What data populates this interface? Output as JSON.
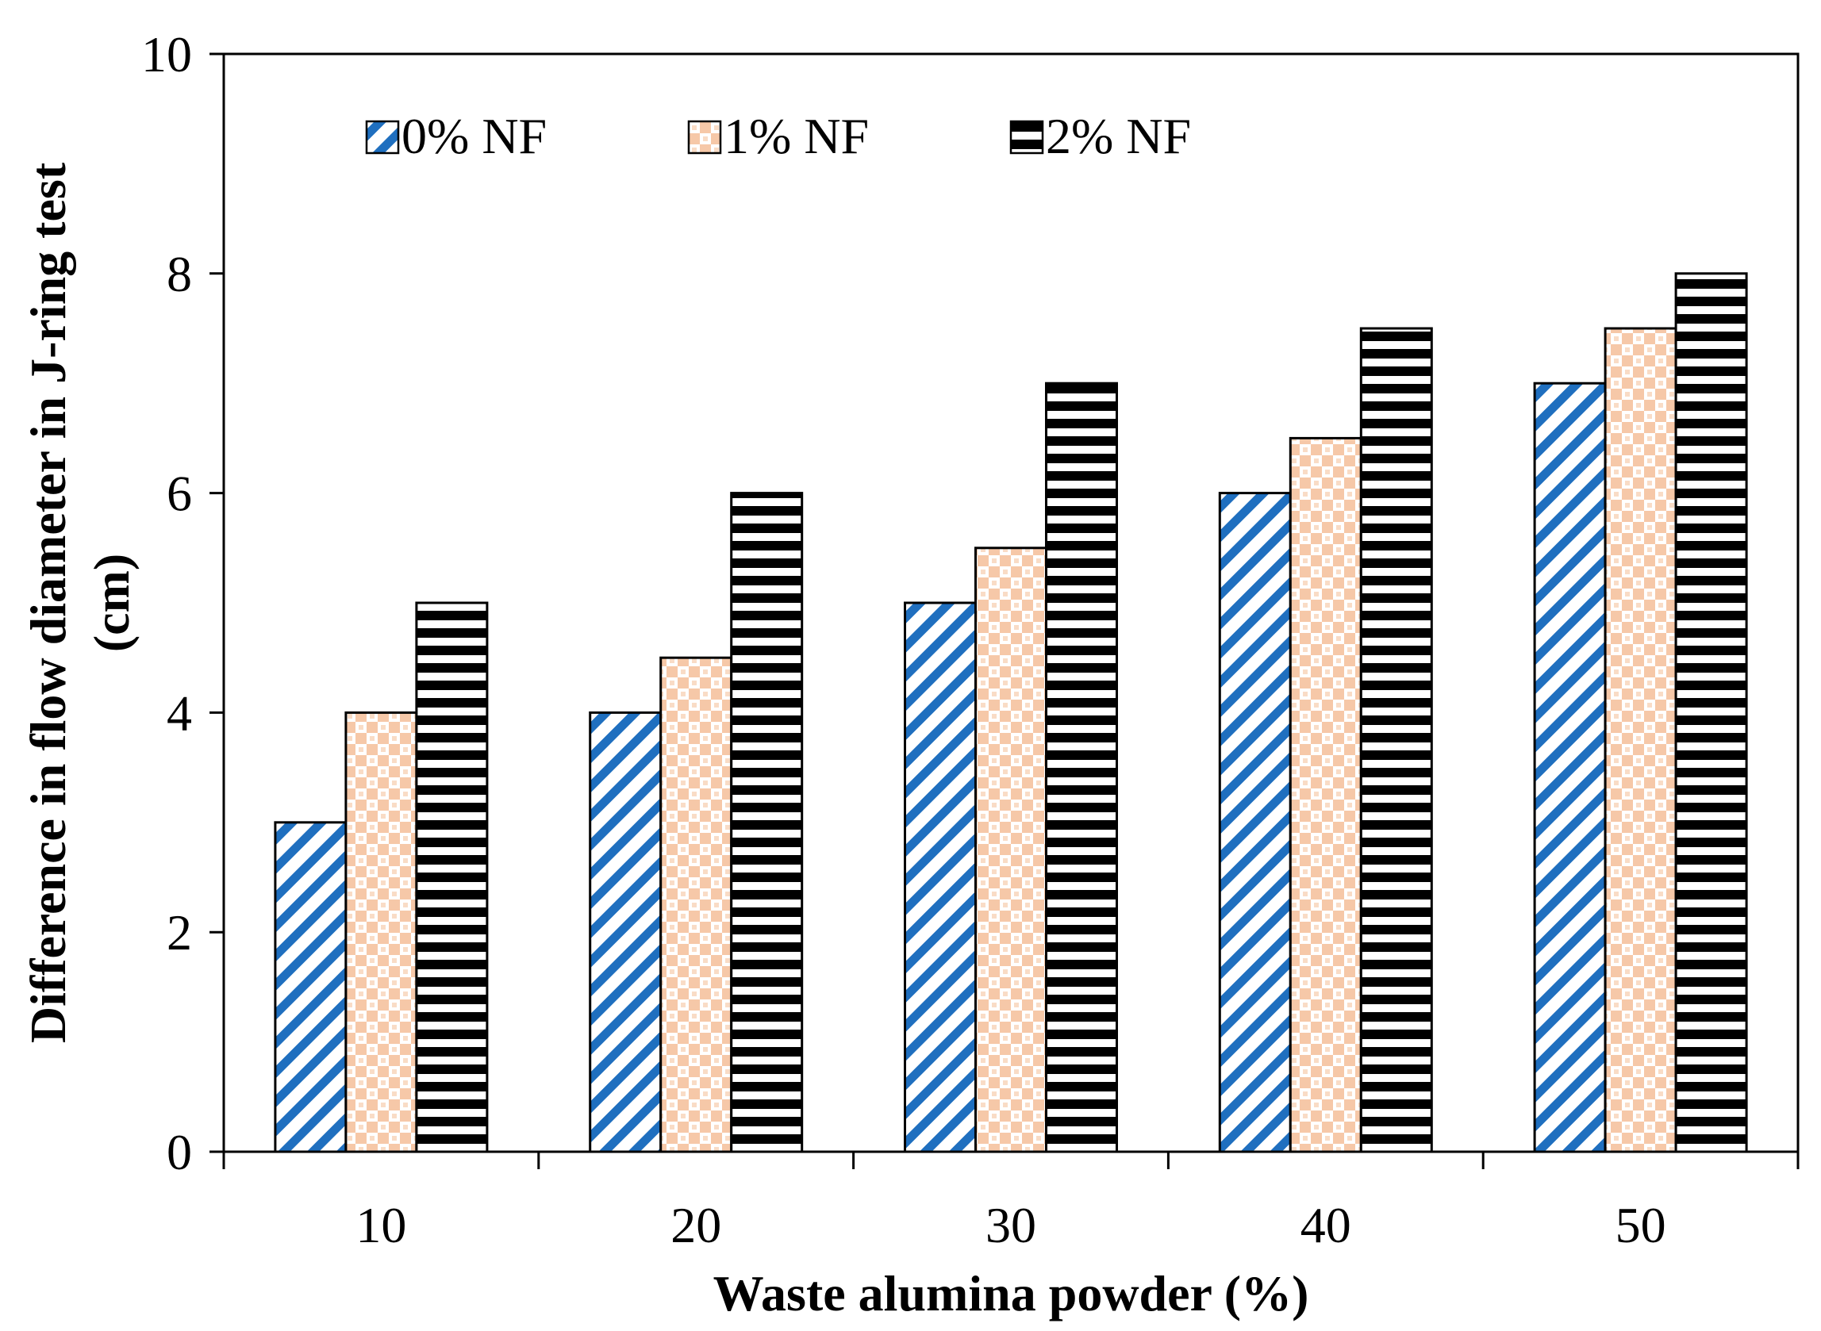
{
  "chart_data": {
    "type": "bar",
    "title": "",
    "xlabel": "Waste alumina powder (%)",
    "ylabel_lines": [
      "Difference in flow diameter in J-ring test",
      "(cm)"
    ],
    "categories": [
      "10",
      "20",
      "30",
      "40",
      "50"
    ],
    "ylim": [
      0,
      10
    ],
    "yticks": [
      "0",
      "2",
      "4",
      "6",
      "8",
      "10"
    ],
    "grid": false,
    "legend_position": "top-left",
    "series": [
      {
        "name": "0% NF",
        "values": [
          3,
          4,
          5,
          6,
          7
        ],
        "pattern": "diagonal-stripes",
        "color": "#1f6fbf"
      },
      {
        "name": "1% NF",
        "values": [
          4,
          4.5,
          5.5,
          6.5,
          7.5
        ],
        "pattern": "checker",
        "color": "#f6c8a8"
      },
      {
        "name": "2% NF",
        "values": [
          5,
          6,
          7,
          7.5,
          8
        ],
        "pattern": "horizontal-stripes",
        "color": "#000000"
      }
    ]
  }
}
